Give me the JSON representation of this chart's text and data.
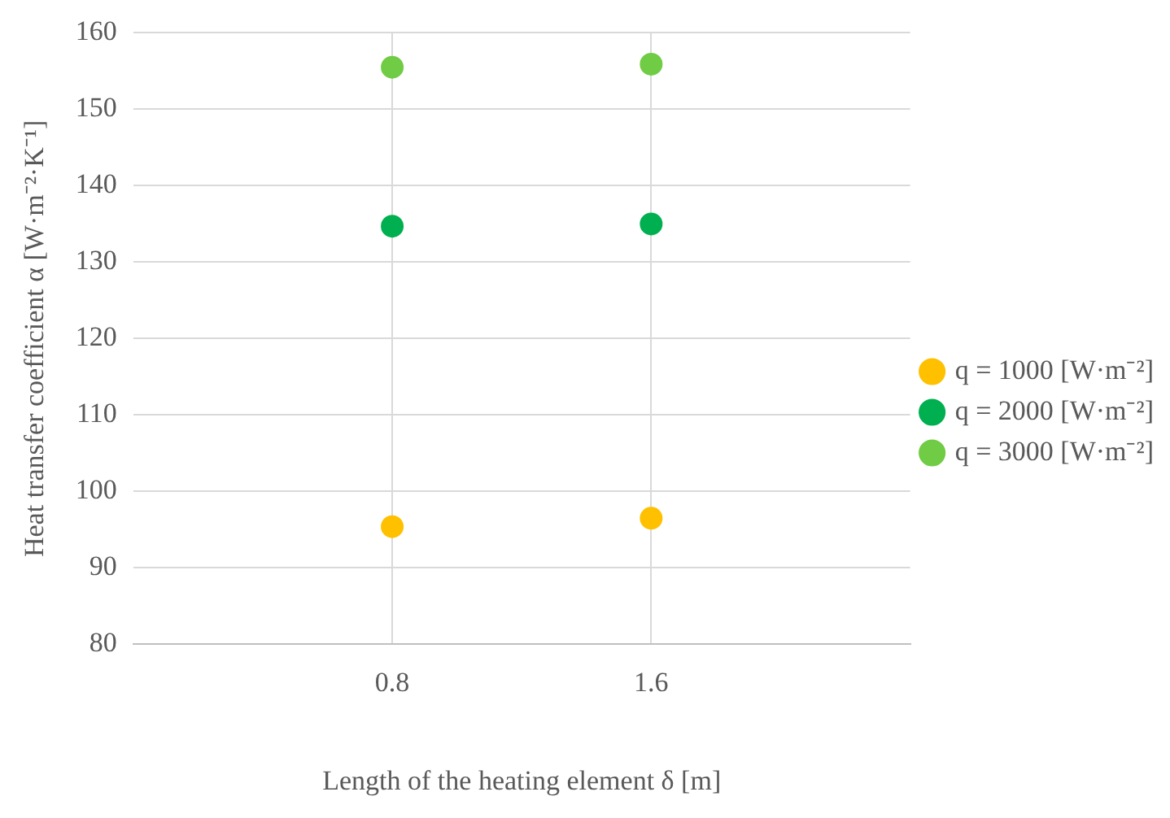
{
  "chart_data": {
    "type": "scatter",
    "xlabel": "Length of the heating element δ [m]",
    "ylabel": "Heat transfer coefficient α [W·m⁻²·K⁻¹]",
    "x": [
      0.8,
      1.6
    ],
    "xlim": [
      0,
      2.4
    ],
    "xticks": [
      0.8,
      1.6
    ],
    "ylim": [
      80,
      160
    ],
    "yticks": [
      80,
      90,
      100,
      110,
      120,
      130,
      140,
      150,
      160
    ],
    "series": [
      {
        "name": "q = 1000 [W·m⁻²]",
        "color": "#ffc000",
        "values": [
          95.4,
          96.5
        ]
      },
      {
        "name": "q = 2000 [W·m⁻²]",
        "color": "#00b050",
        "values": [
          134.7,
          135.0
        ]
      },
      {
        "name": "q = 3000 [W·m⁻²]",
        "color": "#70cc44",
        "values": [
          155.5,
          155.9
        ]
      }
    ],
    "grid": true,
    "legend": "right",
    "marker": "circle"
  }
}
